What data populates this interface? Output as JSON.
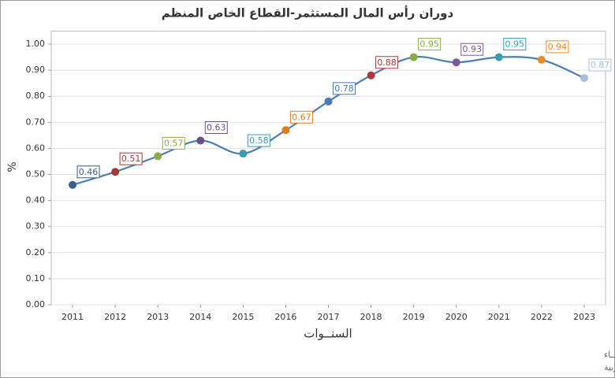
{
  "chart_data": {
    "type": "line",
    "title": "دوران رأس المال المستثمر-القطاع الخاص المنظم",
    "x_label": "السنــوات",
    "y_label": "%",
    "categories": [
      "2011",
      "2012",
      "2013",
      "2014",
      "2015",
      "2016",
      "2017",
      "2018",
      "2019",
      "2020",
      "2021",
      "2022",
      "2023"
    ],
    "values": [
      0.46,
      0.51,
      0.57,
      0.63,
      0.58,
      0.67,
      0.78,
      0.88,
      0.95,
      0.93,
      0.95,
      0.94,
      0.87
    ],
    "line_color": "#4a7fb5",
    "colors": [
      "#3a5f8f",
      "#a33a3a",
      "#8aab46",
      "#6b4f8c",
      "#3a9ab0",
      "#e07b1a",
      "#4a78b0",
      "#a83a3a",
      "#8aab46",
      "#7a5a99",
      "#3a9ab0",
      "#e88a2a",
      "#a8bfd8"
    ],
    "ylim": [
      0,
      1.05
    ],
    "yticks": [
      {
        "value": 0,
        "label": "0.00"
      },
      {
        "value": 0.1,
        "label": "0.10"
      },
      {
        "value": 0.2,
        "label": "0.20"
      },
      {
        "value": 0.3,
        "label": "0.30"
      },
      {
        "value": 0.4,
        "label": "0.40"
      },
      {
        "value": 0.5,
        "label": "0.50"
      },
      {
        "value": 0.6,
        "label": "0.60"
      },
      {
        "value": 0.7,
        "label": "0.70"
      },
      {
        "value": 0.8,
        "label": "0.80"
      },
      {
        "value": 0.9,
        "label": "0.90"
      },
      {
        "value": 1,
        "label": "1.00"
      }
    ],
    "grid": true,
    "notes": [
      "حقوق الملكية للجهـــاز المركزي للتعبئة العـامة والأحصـــاء",
      "المصدر الأساسي للأحصاءات الرسمية لجمهورية مصر العربية"
    ]
  }
}
